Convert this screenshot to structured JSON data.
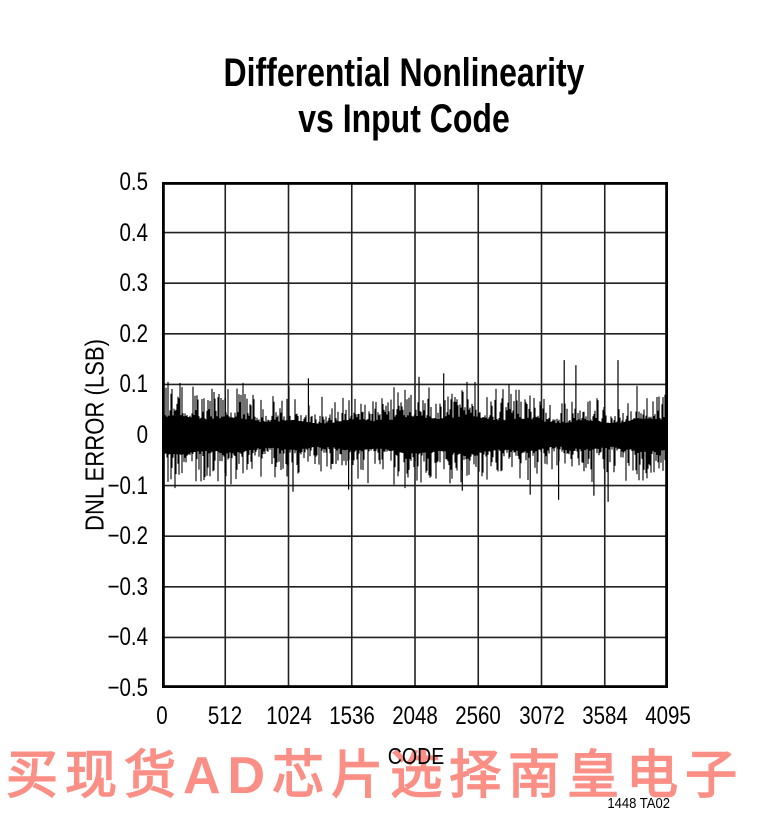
{
  "title": {
    "line1": "Differential Nonlinearity",
    "line2": "vs Input Code"
  },
  "chart": {
    "ylabel": "DNL ERROR (LSB)",
    "xlabel": "CODE",
    "y_ticks": [
      "0.5",
      "0.4",
      "0.3",
      "0.2",
      "0.1",
      "0",
      "−0.1",
      "−0.2",
      "−0.3",
      "−0.4",
      "−0.5"
    ],
    "x_ticks": [
      "0",
      "512",
      "1024",
      "1536",
      "2048",
      "2560",
      "3072",
      "3584",
      "4095"
    ]
  },
  "chart_data": {
    "type": "line",
    "title": "Differential Nonlinearity vs Input Code",
    "xlabel": "CODE",
    "ylabel": "DNL ERROR (LSB)",
    "xlim": [
      0,
      4095
    ],
    "ylim": [
      -0.5,
      0.5
    ],
    "x_tick_values": [
      0,
      512,
      1024,
      1536,
      2048,
      2560,
      3072,
      3584,
      4095
    ],
    "y_tick_values": [
      0.5,
      0.4,
      0.3,
      0.2,
      0.1,
      0,
      -0.1,
      -0.2,
      -0.3,
      -0.4,
      -0.5
    ],
    "grid": true,
    "legend": "none",
    "series_description": "Dense random DNL-error noise band centered at 0 LSB: solid core approx. +/-0.04 LSB, routine excursions to +/-0.10 LSB, rare spikes to +/-0.15 LSB",
    "noise_band": {
      "seed": 20,
      "columns": 506,
      "core_halfwidth_lsb": 0.03,
      "peak_extra_lsb": 0.075,
      "shape_power": 2.4,
      "max_abs_lsb": 0.105
    },
    "notable_spikes": [
      {
        "code": 1185,
        "dnl_lsb": 0.112
      },
      {
        "code": 2080,
        "dnl_lsb": 0.115
      },
      {
        "code": 2280,
        "dnl_lsb": 0.122
      },
      {
        "code": 3255,
        "dnl_lsb": 0.148
      },
      {
        "code": 3350,
        "dnl_lsb": 0.138
      },
      {
        "code": 3690,
        "dnl_lsb": 0.148
      },
      {
        "code": 1060,
        "dnl_lsb": -0.112
      },
      {
        "code": 1510,
        "dnl_lsb": -0.108
      },
      {
        "code": 2430,
        "dnl_lsb": -0.11
      },
      {
        "code": 2980,
        "dnl_lsb": -0.118
      },
      {
        "code": 3210,
        "dnl_lsb": -0.128
      },
      {
        "code": 3495,
        "dnl_lsb": -0.12
      },
      {
        "code": 3610,
        "dnl_lsb": -0.132
      }
    ]
  },
  "watermark": {
    "text": "买现货AD芯片选择南皇电子",
    "color": "#fb8e85"
  },
  "figure_label": "1448 TA02",
  "colors": {
    "trace": "#000000",
    "grid": "#222222",
    "border": "#000000",
    "text": "#000000",
    "background": "#ffffff"
  }
}
